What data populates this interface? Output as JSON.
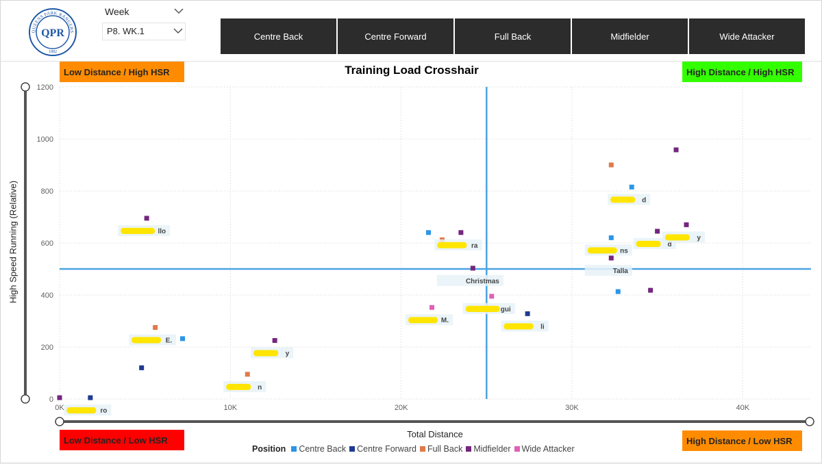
{
  "filters": {
    "week_label": "Week",
    "week_value": "P8. WK.1"
  },
  "crest": {
    "text_top": "QUEENS PARK RANGERS",
    "monogram": "QPR",
    "year": "1882"
  },
  "tabs": [
    "Centre Back",
    "Centre Forward",
    "Full Back",
    "Midfielder",
    "Wide Attacker"
  ],
  "quadrants": {
    "upper_left": "Low Distance / High HSR",
    "upper_right": "High Distance / High HSR",
    "lower_left": "Low Distance / Low HSR",
    "lower_right": "High Distance / Low HSR"
  },
  "colors": {
    "Centre Back": "#2b96e6",
    "Centre Forward": "#1f3a93",
    "Full Back": "#e07a4a",
    "Midfielder": "#74277e",
    "Wide Attacker": "#e060b8",
    "crosshair": "#4ba3e3",
    "tab_bg": "#2c2c2c"
  },
  "chart_data": {
    "type": "scatter",
    "title": "Training Load Crosshair",
    "xlabel": "Total Distance",
    "ylabel": "High Speed Running (Relative)",
    "xlim": [
      0,
      44000
    ],
    "ylim": [
      0,
      1200
    ],
    "x_ticks": [
      0,
      10000,
      20000,
      30000,
      40000
    ],
    "x_tick_labels": [
      "0K",
      "10K",
      "20K",
      "30K",
      "40K"
    ],
    "y_ticks": [
      0,
      200,
      400,
      600,
      800,
      1000,
      1200
    ],
    "crosshair": {
      "x": 25000,
      "y": 500
    },
    "grid": true,
    "legend": {
      "title": "Position",
      "placement": "bottom",
      "entries": [
        "Centre Back",
        "Centre Forward",
        "Full Back",
        "Midfielder",
        "Wide Attacker"
      ]
    },
    "points": [
      {
        "x": 5100,
        "y": 695,
        "position": "Midfielder",
        "label": "...llo"
      },
      {
        "x": 5600,
        "y": 275,
        "position": "Full Back",
        "label": "...E."
      },
      {
        "x": 7200,
        "y": 232,
        "position": "Centre Back",
        "label": ""
      },
      {
        "x": 4800,
        "y": 120,
        "position": "Centre Forward",
        "label": ""
      },
      {
        "x": 12600,
        "y": 225,
        "position": "Midfielder",
        "label": "...y"
      },
      {
        "x": 11000,
        "y": 95,
        "position": "Full Back",
        "label": "...n"
      },
      {
        "x": 0,
        "y": 5,
        "position": "Midfielder",
        "label": ""
      },
      {
        "x": 1800,
        "y": 5,
        "position": "Centre Forward",
        "label": "...ro"
      },
      {
        "x": 21600,
        "y": 640,
        "position": "Centre Back",
        "label": ""
      },
      {
        "x": 22400,
        "y": 612,
        "position": "Full Back",
        "label": ""
      },
      {
        "x": 23500,
        "y": 640,
        "position": "Midfielder",
        "label": "...ra"
      },
      {
        "x": 24200,
        "y": 503,
        "position": "Midfielder",
        "label": "Christmas"
      },
      {
        "x": 21800,
        "y": 352,
        "position": "Wide Attacker",
        "label": "...M."
      },
      {
        "x": 25300,
        "y": 395,
        "position": "Wide Attacker",
        "label": "...gui"
      },
      {
        "x": 27400,
        "y": 328,
        "position": "Centre Forward",
        "label": "...li"
      },
      {
        "x": 32300,
        "y": 900,
        "position": "Full Back",
        "label": ""
      },
      {
        "x": 33500,
        "y": 815,
        "position": "Centre Back",
        "label": "...d"
      },
      {
        "x": 36100,
        "y": 958,
        "position": "Midfielder",
        "label": ""
      },
      {
        "x": 32300,
        "y": 620,
        "position": "Centre Back",
        "label": "...ns"
      },
      {
        "x": 35000,
        "y": 645,
        "position": "Midfielder",
        "label": "...d"
      },
      {
        "x": 36700,
        "y": 670,
        "position": "Midfielder",
        "label": "...y"
      },
      {
        "x": 32300,
        "y": 542,
        "position": "Midfielder",
        "label": "Talla"
      },
      {
        "x": 32700,
        "y": 413,
        "position": "Centre Back",
        "label": ""
      },
      {
        "x": 34600,
        "y": 418,
        "position": "Midfielder",
        "label": ""
      }
    ]
  }
}
